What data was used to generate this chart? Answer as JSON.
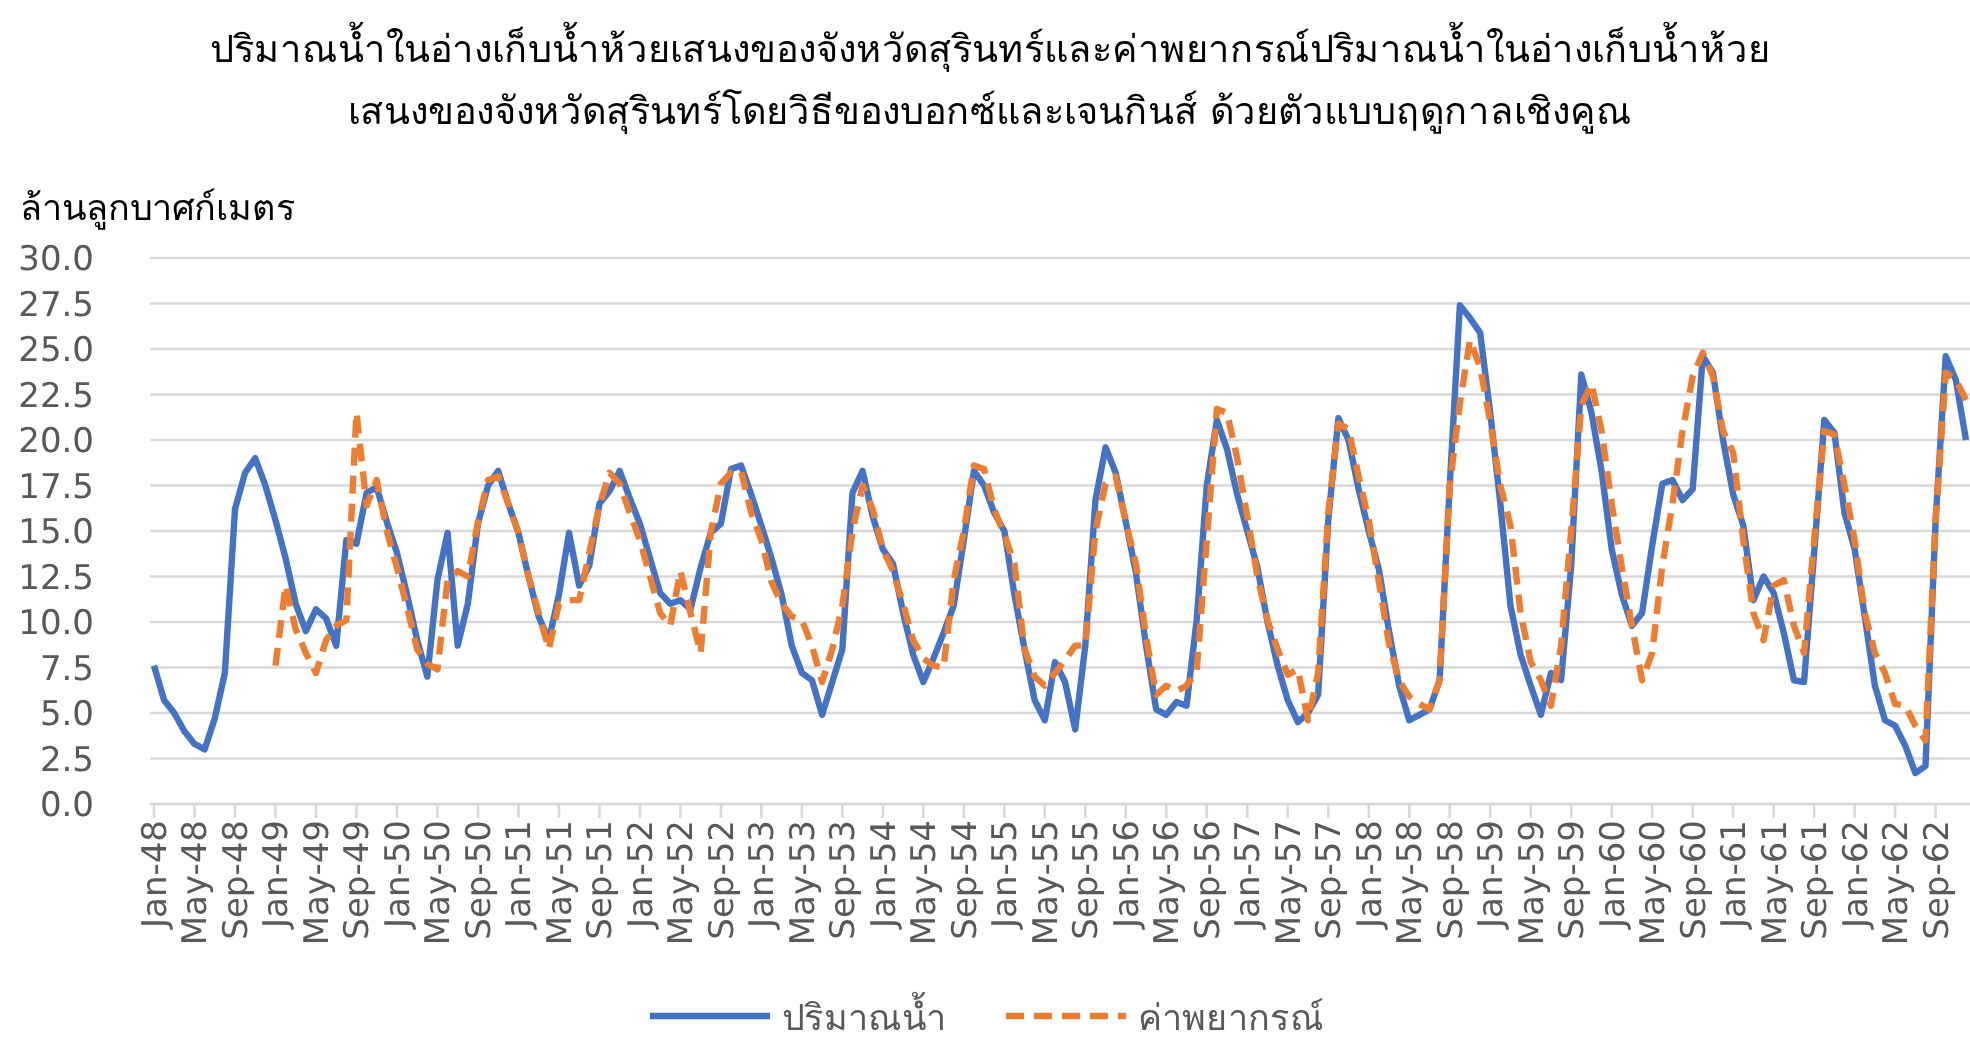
{
  "chart_data": {
    "type": "line",
    "title": "ปริมาณน้ำในอ่างเก็บน้ำห้วยเสนงของจังหวัดสุรินทร์และค่าพยากรณ์ปริมาณน้ำในอ่างเก็บน้ำห้วยเสนงของจังหวัดสุรินทร์โดยวิธีของบอกซ์และเจนกินส์ ด้วยตัวแบบฤดูกาลเชิงคูณ",
    "ylabel": "ล้านลูกบาศก์เมตร",
    "categories": [
      "Jan-48",
      null,
      null,
      null,
      "May-48",
      null,
      null,
      null,
      "Sep-48",
      null,
      null,
      null,
      "Jan-49",
      null,
      null,
      null,
      "May-49",
      null,
      null,
      null,
      "Sep-49",
      null,
      null,
      null,
      "Jan-50",
      null,
      null,
      null,
      "May-50",
      null,
      null,
      null,
      "Sep-50",
      null,
      null,
      null,
      "Jan-51",
      null,
      null,
      null,
      "May-51",
      null,
      null,
      null,
      "Sep-51",
      null,
      null,
      null,
      "Jan-52",
      null,
      null,
      null,
      "May-52",
      null,
      null,
      null,
      "Sep-52",
      null,
      null,
      null,
      "Jan-53",
      null,
      null,
      null,
      "May-53",
      null,
      null,
      null,
      "Sep-53",
      null,
      null,
      null,
      "Jan-54",
      null,
      null,
      null,
      "May-54",
      null,
      null,
      null,
      "Sep-54",
      null,
      null,
      null,
      "Jan-55",
      null,
      null,
      null,
      "May-55",
      null,
      null,
      null,
      "Sep-55",
      null,
      null,
      null,
      "Jan-56",
      null,
      null,
      null,
      "May-56",
      null,
      null,
      null,
      "Sep-56",
      null,
      null,
      null,
      "Jan-57",
      null,
      null,
      null,
      "May-57",
      null,
      null,
      null,
      "Sep-57",
      null,
      null,
      null,
      "Jan-58",
      null,
      null,
      null,
      "May-58",
      null,
      null,
      null,
      "Sep-58",
      null,
      null,
      null,
      "Jan-59",
      null,
      null,
      null,
      "May-59",
      null,
      null,
      null,
      "Sep-59",
      null,
      null,
      null,
      "Jan-60",
      null,
      null,
      null,
      "May-60",
      null,
      null,
      null,
      "Sep-60",
      null,
      null,
      null,
      "Jan-61",
      null,
      null,
      null,
      "May-61",
      null,
      null,
      null,
      "Sep-61",
      null,
      null,
      null,
      "Jan-62",
      null,
      null,
      null,
      "May-62",
      null,
      null,
      null,
      "Sep-62",
      null,
      null,
      null
    ],
    "series": [
      {
        "name": "ปริมาณน้ำ",
        "color": "#4472c4",
        "line_style": "solid",
        "values": [
          7.6,
          5.7,
          5.0,
          4.0,
          3.3,
          3.0,
          4.7,
          7.2,
          16.2,
          18.2,
          19.0,
          17.5,
          15.6,
          13.5,
          11.0,
          9.5,
          10.7,
          10.2,
          8.7,
          14.5,
          14.3,
          17.1,
          17.4,
          15.5,
          13.8,
          11.5,
          9.0,
          7.0,
          12.3,
          14.9,
          8.7,
          11.0,
          15.4,
          17.5,
          18.3,
          16.5,
          14.9,
          12.5,
          10.3,
          9.0,
          11.5,
          14.9,
          12.0,
          13.1,
          16.5,
          17.2,
          18.3,
          16.8,
          15.4,
          13.5,
          11.6,
          11.0,
          11.2,
          10.7,
          13.0,
          14.9,
          15.4,
          18.4,
          18.6,
          17.0,
          15.3,
          13.5,
          11.5,
          8.7,
          7.2,
          6.8,
          4.9,
          6.7,
          8.5,
          17.1,
          18.3,
          15.8,
          14.0,
          13.2,
          10.5,
          8.2,
          6.7,
          8.0,
          9.4,
          10.9,
          14.5,
          18.3,
          17.5,
          16.0,
          15.0,
          11.5,
          8.5,
          5.7,
          4.6,
          7.8,
          6.7,
          4.1,
          8.7,
          16.7,
          19.6,
          18.2,
          15.5,
          12.7,
          8.7,
          5.2,
          4.9,
          5.6,
          5.4,
          10.1,
          17.5,
          21.1,
          19.5,
          17.0,
          15.0,
          13.0,
          10.0,
          7.6,
          5.7,
          4.5,
          5.0,
          6.0,
          15.6,
          21.2,
          20.0,
          17.3,
          15.0,
          12.9,
          9.5,
          6.5,
          4.6,
          4.9,
          5.2,
          6.8,
          17.5,
          27.4,
          26.7,
          25.9,
          21.5,
          16.5,
          10.9,
          8.2,
          6.5,
          4.9,
          7.2,
          6.8,
          13.1,
          23.6,
          21.5,
          18.3,
          14.0,
          11.5,
          9.8,
          10.5,
          14.2,
          17.6,
          17.8,
          16.7,
          17.3,
          24.6,
          23.7,
          20.0,
          17.0,
          15.3,
          11.2,
          12.5,
          11.6,
          9.4,
          6.8,
          6.7,
          13.8,
          21.1,
          20.4,
          16.0,
          14.0,
          10.3,
          6.5,
          4.6,
          4.3,
          3.2,
          1.7,
          2.1,
          15.6,
          24.6,
          23.3,
          20.0
        ]
      },
      {
        "name": "ค่าพยากรณ์",
        "color": "#ed7d31",
        "line_style": "dashed",
        "values": [
          null,
          null,
          null,
          null,
          null,
          null,
          null,
          null,
          null,
          null,
          null,
          null,
          7.6,
          12.0,
          9.6,
          8.3,
          7.2,
          9.0,
          9.8,
          10.1,
          21.5,
          16.4,
          17.8,
          15.0,
          13.0,
          10.8,
          8.5,
          7.7,
          7.4,
          12.3,
          12.8,
          12.5,
          15.5,
          17.8,
          18.0,
          16.5,
          14.9,
          12.5,
          10.5,
          8.5,
          11.0,
          11.2,
          11.2,
          13.8,
          16.4,
          18.2,
          17.6,
          16.0,
          14.5,
          12.5,
          10.5,
          9.8,
          12.8,
          10.5,
          8.3,
          14.9,
          17.6,
          18.2,
          18.3,
          16.0,
          14.5,
          12.2,
          11.0,
          10.3,
          10.1,
          8.7,
          6.7,
          8.5,
          10.9,
          15.0,
          17.5,
          16.2,
          14.0,
          12.8,
          11.0,
          9.0,
          8.0,
          7.6,
          7.5,
          12.3,
          15.0,
          18.6,
          18.4,
          16.2,
          14.8,
          13.2,
          8.5,
          7.0,
          6.5,
          7.2,
          7.9,
          8.7,
          8.7,
          15.0,
          17.6,
          18.0,
          15.5,
          13.2,
          9.2,
          6.0,
          6.5,
          6.2,
          6.5,
          7.3,
          14.5,
          21.7,
          21.5,
          19.0,
          15.8,
          12.5,
          10.1,
          8.5,
          7.1,
          7.4,
          4.6,
          7.2,
          16.0,
          20.9,
          20.6,
          18.0,
          15.6,
          12.2,
          8.8,
          6.8,
          5.9,
          5.5,
          5.2,
          6.8,
          17.5,
          22.0,
          25.5,
          24.0,
          21.0,
          17.5,
          15.3,
          10.5,
          7.8,
          6.8,
          5.4,
          8.7,
          15.0,
          21.9,
          23.1,
          20.5,
          16.5,
          13.0,
          9.8,
          6.8,
          8.3,
          13.1,
          16.5,
          20.5,
          23.5,
          24.8,
          23.5,
          20.5,
          19.3,
          14.5,
          10.5,
          9.0,
          12.0,
          12.3,
          9.8,
          8.3,
          14.5,
          20.5,
          20.3,
          17.5,
          14.5,
          10.5,
          8.3,
          7.2,
          5.5,
          5.4,
          4.3,
          3.5,
          15.6,
          23.7,
          23.3,
          22.2
        ]
      }
    ],
    "ylim": [
      0,
      30
    ],
    "yticks": [
      {
        "value": 0,
        "label": "0.0"
      },
      {
        "value": 2.5,
        "label": "2.5"
      },
      {
        "value": 5,
        "label": "5.0"
      },
      {
        "value": 7.5,
        "label": "7.5"
      },
      {
        "value": 10,
        "label": "10.0"
      },
      {
        "value": 12.5,
        "label": "12.5"
      },
      {
        "value": 15,
        "label": "15.0"
      },
      {
        "value": 17.5,
        "label": "17.5"
      },
      {
        "value": 20,
        "label": "20.0"
      },
      {
        "value": 22.5,
        "label": "22.5"
      },
      {
        "value": 25,
        "label": "25.0"
      },
      {
        "value": 27.5,
        "label": "27.5"
      },
      {
        "value": 30,
        "label": "30.0"
      }
    ],
    "grid": "y",
    "legend": "bottom"
  }
}
